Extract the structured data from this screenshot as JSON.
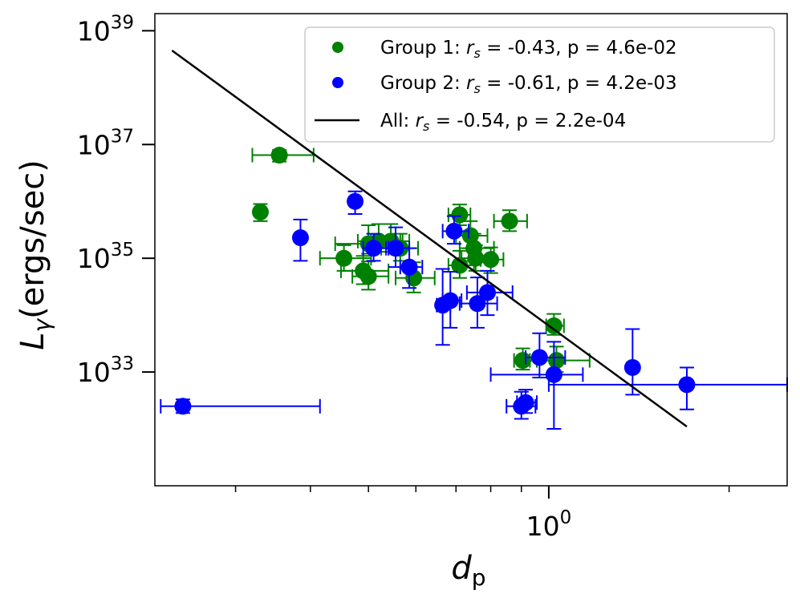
{
  "chart_data": {
    "type": "scatter",
    "xlabel": "d",
    "xlabel_subscript": "p",
    "ylabel": "L",
    "ylabel_subscript": "γ",
    "ylabel_suffix": "(ergs/sec)",
    "xscale": "log",
    "yscale": "log",
    "xlim": [
      0.22,
      2.5
    ],
    "ylim": [
      1e+31,
      2e+39
    ],
    "x_ticks_major": [
      {
        "value": 1.0,
        "label_base": "10",
        "label_exp": "0"
      }
    ],
    "x_ticks_minor": [
      0.3,
      0.4,
      0.5,
      0.6,
      0.7,
      0.8,
      0.9,
      2.0
    ],
    "y_ticks": [
      {
        "value": 1e+33,
        "label_base": "10",
        "label_exp": "33"
      },
      {
        "value": 1e+35,
        "label_base": "10",
        "label_exp": "35"
      },
      {
        "value": 1e+37,
        "label_base": "10",
        "label_exp": "37"
      },
      {
        "value": 1e+39,
        "label_base": "10",
        "label_exp": "39"
      }
    ],
    "legend_position": "top-right",
    "legend": [
      {
        "kind": "marker",
        "color": "#008000",
        "prefix": "Group 1: ",
        "symbol": "r",
        "symbol_sub": "s",
        "suffix": " = -0.43, p = 4.6e-02"
      },
      {
        "kind": "marker",
        "color": "#0000ff",
        "prefix": "Group 2: ",
        "symbol": "r",
        "symbol_sub": "s",
        "suffix": " = -0.61, p = 4.2e-03"
      },
      {
        "kind": "line",
        "color": "#000000",
        "prefix": "All: ",
        "symbol": "r",
        "symbol_sub": "s",
        "suffix": " = -0.54, p = 2.2e-04"
      }
    ],
    "fit_line": {
      "name": "All",
      "color": "#000000",
      "x": [
        0.235,
        1.7
      ],
      "y": [
        4.5e+38,
        1.1e+32
      ]
    },
    "series": [
      {
        "name": "Group 1",
        "color": "#008000",
        "points": [
          {
            "x": 0.355,
            "y": 6.5e+36,
            "xerr": [
              0.035,
              0.05
            ],
            "yerr": [
              1.5e+36,
              1.5e+36
            ]
          },
          {
            "x": 0.33,
            "y": 6.5e+35,
            "xerr": [
              0.005,
              0.005
            ],
            "yerr": [
              2e+35,
              2.5e+35
            ]
          },
          {
            "x": 0.455,
            "y": 1e+35,
            "xerr": [
              0.04,
              0.05
            ],
            "yerr": [
              4e+34,
              7e+34
            ]
          },
          {
            "x": 0.5,
            "y": 1.8e+35,
            "xerr": [
              0.06,
              0.07
            ],
            "yerr": [
              6e+34,
              2e+35
            ]
          },
          {
            "x": 0.49,
            "y": 6e+34,
            "xerr": [
              0.04,
              0.05
            ],
            "yerr": [
              2.5e+34,
              5e+34
            ]
          },
          {
            "x": 0.5,
            "y": 4.8e+34,
            "xerr": [
              0.03,
              0.04
            ],
            "yerr": [
              2e+34,
              4e+34
            ]
          },
          {
            "x": 0.52,
            "y": 2e+35,
            "xerr": [
              0.04,
              0.05
            ],
            "yerr": [
              7e+34,
              2e+35
            ]
          },
          {
            "x": 0.545,
            "y": 2e+35,
            "xerr": [
              0.04,
              0.04
            ],
            "yerr": [
              7e+34,
              2e+35
            ]
          },
          {
            "x": 0.565,
            "y": 1.5e+35,
            "xerr": [
              0.04,
              0.04
            ],
            "yerr": [
              6e+34,
              1.2e+35
            ]
          },
          {
            "x": 0.595,
            "y": 4.5e+34,
            "xerr": [
              0.04,
              0.05
            ],
            "yerr": [
              2e+34,
              4e+34
            ]
          },
          {
            "x": 0.71,
            "y": 5.8e+35,
            "xerr": [
              0.03,
              0.03
            ],
            "yerr": [
              2e+35,
              3e+35
            ]
          },
          {
            "x": 0.71,
            "y": 7.5e+34,
            "xerr": [
              0.03,
              0.04
            ],
            "yerr": [
              3e+34,
              6e+34
            ]
          },
          {
            "x": 0.74,
            "y": 2.5e+35,
            "xerr": [
              0.04,
              0.05
            ],
            "yerr": [
              1e+35,
              2e+35
            ]
          },
          {
            "x": 0.75,
            "y": 1.5e+35,
            "xerr": [
              0.04,
              0.06
            ],
            "yerr": [
              6e+34,
              1.2e+35
            ]
          },
          {
            "x": 0.755,
            "y": 1e+35,
            "xerr": [
              0.04,
              0.05
            ],
            "yerr": [
              4e+34,
              7e+34
            ]
          },
          {
            "x": 0.8,
            "y": 9.5e+34,
            "xerr": [
              0.03,
              0.04
            ],
            "yerr": [
              4e+34,
              6e+34
            ]
          },
          {
            "x": 0.86,
            "y": 4.5e+35,
            "xerr": [
              0.05,
              0.06
            ],
            "yerr": [
              1.5e+35,
              2.5e+35
            ]
          },
          {
            "x": 0.905,
            "y": 1.6e+33,
            "xerr": [
              0.03,
              0.05
            ],
            "yerr": [
              5e+32,
              1e+33
            ]
          },
          {
            "x": 1.02,
            "y": 6.5e+33,
            "xerr": [
              0.03,
              0.04
            ],
            "yerr": [
              2e+33,
              4e+33
            ]
          },
          {
            "x": 1.03,
            "y": 1.6e+33,
            "xerr": [
              0.1,
              0.14
            ],
            "yerr": [
              6e+32,
              1.2e+33
            ]
          }
        ]
      },
      {
        "name": "Group 2",
        "color": "#0000ff",
        "points": [
          {
            "x": 0.245,
            "y": 2.5e+32,
            "xerr": [
              0.02,
              0.17
            ],
            "yerr": [
              6e+31,
              8e+31
            ]
          },
          {
            "x": 0.385,
            "y": 2.3e+35,
            "xerr": [
              0.005,
              0.005
            ],
            "yerr": [
              1.4e+35,
              2.5e+35
            ]
          },
          {
            "x": 0.475,
            "y": 1e+36,
            "xerr": [
              0.005,
              0.005
            ],
            "yerr": [
              4e+35,
              5e+35
            ]
          },
          {
            "x": 0.51,
            "y": 1.5e+35,
            "xerr": [
              0.02,
              0.03
            ],
            "yerr": [
              6e+34,
              1.2e+35
            ]
          },
          {
            "x": 0.555,
            "y": 1.5e+35,
            "xerr": [
              0.02,
              0.03
            ],
            "yerr": [
              8e+34,
              2e+35
            ]
          },
          {
            "x": 0.585,
            "y": 7e+34,
            "xerr": [
              0.02,
              0.03
            ],
            "yerr": [
              4e+34,
              8e+34
            ]
          },
          {
            "x": 0.665,
            "y": 1.5e+34,
            "xerr": [
              0.015,
              0.02
            ],
            "yerr": [
              1.2e+34,
              5e+34
            ]
          },
          {
            "x": 0.685,
            "y": 1.8e+34,
            "xerr": [
              0.02,
              0.03
            ],
            "yerr": [
              1.2e+34,
              4e+34
            ]
          },
          {
            "x": 0.695,
            "y": 3e+35,
            "xerr": [
              0.03,
              0.04
            ],
            "yerr": [
              1.2e+35,
              2.5e+35
            ]
          },
          {
            "x": 0.76,
            "y": 1.6e+34,
            "xerr": [
              0.05,
              0.06
            ],
            "yerr": [
              1e+34,
              3e+34
            ]
          },
          {
            "x": 0.79,
            "y": 2.5e+34,
            "xerr": [
              0.06,
              0.08
            ],
            "yerr": [
              1.5e+34,
              3.5e+34
            ]
          },
          {
            "x": 0.9,
            "y": 2.5e+32,
            "xerr": [
              0.05,
              0.05
            ],
            "yerr": [
              1e+32,
              2e+32
            ]
          },
          {
            "x": 0.915,
            "y": 2.9e+32,
            "xerr": [
              0.03,
              0.04
            ],
            "yerr": [
              1e+32,
              2e+32
            ]
          },
          {
            "x": 0.965,
            "y": 1.8e+33,
            "xerr": [
              0.05,
              0.1
            ],
            "yerr": [
              1e+33,
              3e+33
            ]
          },
          {
            "x": 1.02,
            "y": 9e+32,
            "xerr": [
              0.22,
              0.12
            ],
            "yerr": [
              8e+32,
              2.5e+33
            ]
          },
          {
            "x": 1.38,
            "y": 1.2e+33,
            "xerr": [
              0.01,
              0.01
            ],
            "yerr": [
              8e+32,
              4.5e+33
            ]
          },
          {
            "x": 1.7,
            "y": 6e+32,
            "xerr": [
              0.7,
              0.8
            ],
            "yerr": [
              3.8e+32,
              6e+32
            ]
          }
        ]
      }
    ]
  }
}
